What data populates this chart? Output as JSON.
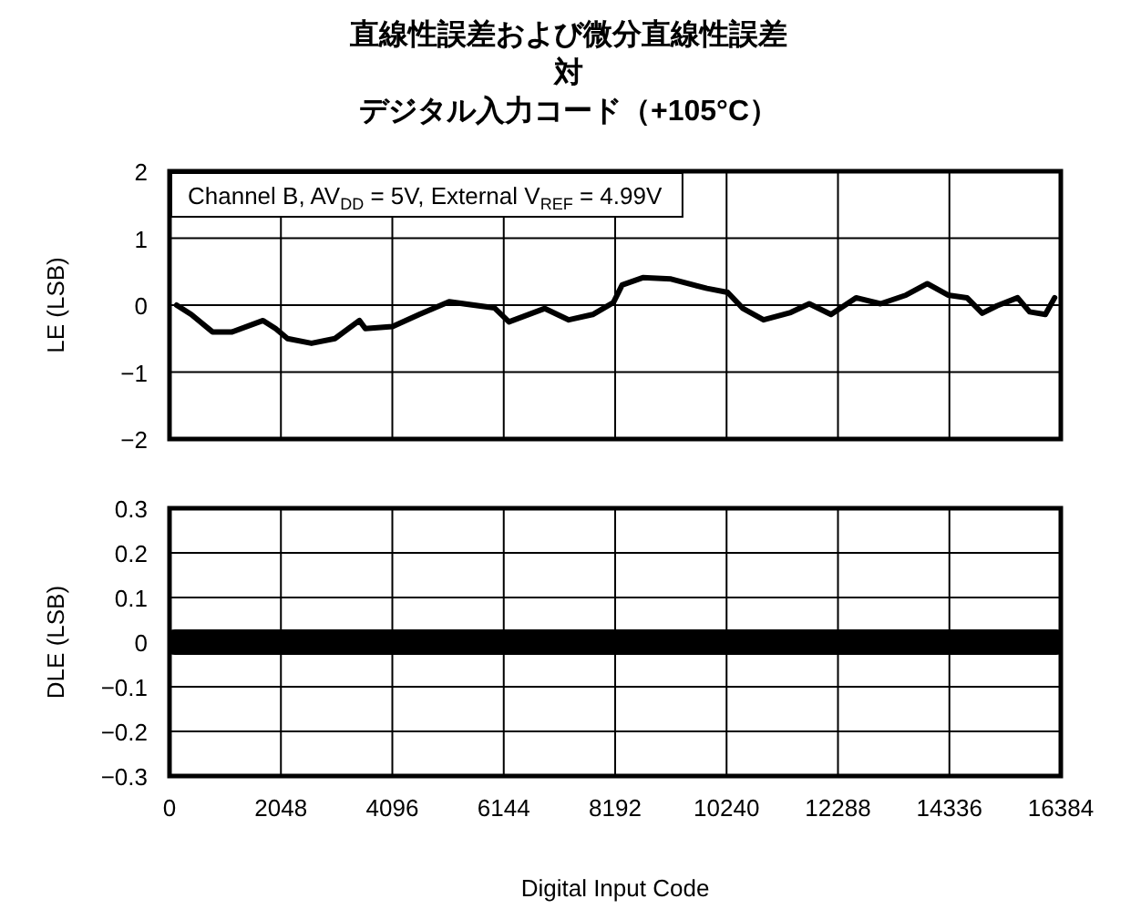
{
  "chart_data": [
    {
      "type": "line",
      "title": "直線性誤差および微分直線性誤差対デジタル入力コード（+105°C）",
      "ylabel": "LE (LSB)",
      "annotations": [
        "Channel B, AV$_{DD}$ = 5V, External V$_{REF}$ = 4.99V"
      ],
      "xlim": [
        0,
        16384
      ],
      "xticks": [
        0,
        2048,
        4096,
        6144,
        8192,
        10240,
        12288,
        14336,
        16384
      ],
      "ylim": [
        -2,
        2
      ],
      "yticks": [
        -2,
        -1,
        0,
        1,
        2
      ],
      "grid": true,
      "marker": "none",
      "line_style": "solid",
      "tick_labels": "y",
      "series": [
        {
          "color": "#000000",
          "x": [
            130,
            400,
            790,
            1150,
            1720,
            1950,
            2170,
            2610,
            3040,
            3490,
            3600,
            4100,
            4590,
            5140,
            5970,
            6240,
            6900,
            7340,
            7780,
            8160,
            8320,
            8700,
            9220,
            9880,
            10260,
            10540,
            10920,
            11420,
            11760,
            12160,
            12620,
            13070,
            13540,
            13930,
            14310,
            14660,
            14940,
            15210,
            15590,
            15810,
            16100,
            16270
          ],
          "values": [
            0,
            -0.14,
            -0.4,
            -0.4,
            -0.23,
            -0.35,
            -0.5,
            -0.57,
            -0.5,
            -0.23,
            -0.35,
            -0.32,
            -0.14,
            0.05,
            -0.04,
            -0.25,
            -0.05,
            -0.22,
            -0.14,
            0.04,
            0.3,
            0.41,
            0.39,
            0.25,
            0.19,
            -0.05,
            -0.22,
            -0.11,
            0.02,
            -0.14,
            0.11,
            0.02,
            0.15,
            0.32,
            0.15,
            0.11,
            -0.12,
            -0.01,
            0.11,
            -0.1,
            -0.14,
            0.11
          ]
        }
      ]
    },
    {
      "type": "line",
      "xlabel": "Digital Input Code",
      "ylabel": "DLE (LSB)",
      "xlim": [
        0,
        16384
      ],
      "xticks": [
        0,
        2048,
        4096,
        6144,
        8192,
        10240,
        12288,
        14336,
        16384
      ],
      "ylim": [
        -0.3,
        0.3
      ],
      "yticks": [
        -0.3,
        -0.2,
        -0.1,
        0,
        0.1,
        0.2,
        0.3
      ],
      "grid": true,
      "marker": "none",
      "line_style": "solid",
      "series": [
        {
          "color": "#000000",
          "x": [
            100,
            16300
          ],
          "values": [
            0,
            0
          ]
        }
      ]
    }
  ]
}
